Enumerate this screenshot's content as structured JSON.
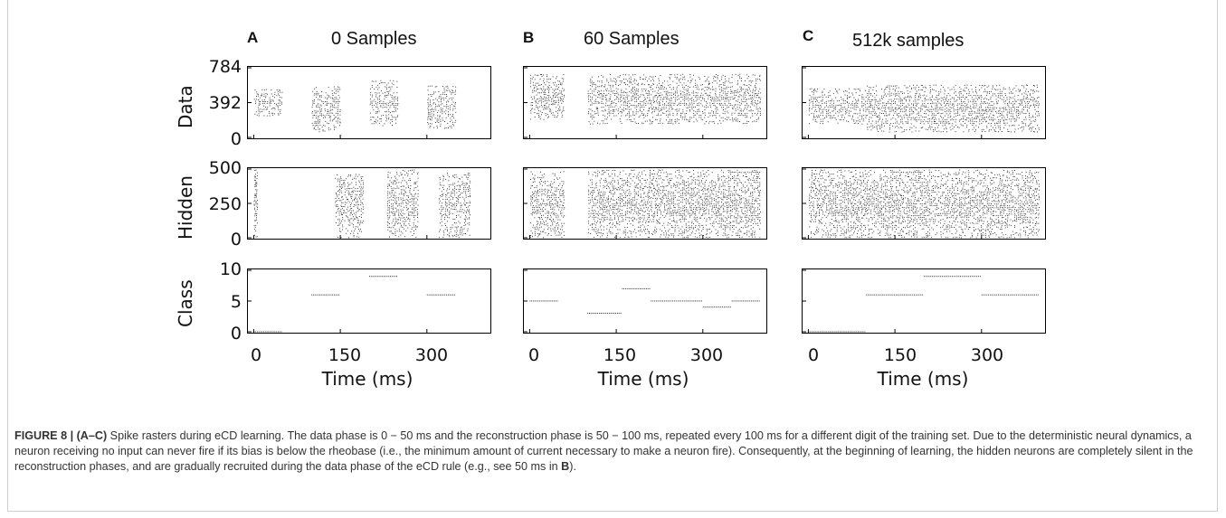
{
  "panels": [
    {
      "letter": "A",
      "title": "0 Samples"
    },
    {
      "letter": "B",
      "title": "60 Samples"
    },
    {
      "letter": "C",
      "title": "512k samples"
    }
  ],
  "rows": [
    {
      "ylabel": "Data",
      "yticks": [
        "784",
        "392",
        "0"
      ]
    },
    {
      "ylabel": "Hidden",
      "yticks": [
        "500",
        "250",
        "0"
      ]
    },
    {
      "ylabel": "Class",
      "yticks": [
        "10",
        "5",
        "0"
      ]
    }
  ],
  "xticks": [
    "0",
    "150",
    "300"
  ],
  "xlabel": "Time (ms)",
  "caption": {
    "label": "FIGURE 8 | (A–C)",
    "text_1": " Spike rasters during eCD learning. The data phase is 0 − 50 ms and the reconstruction phase is 50 − 100 ms, repeated every 100 ms for a different digit of the training set. Due to the deterministic neural dynamics, a neuron receiving no input can never fire if its bias is below the rheobase (i.e., the minimum amount of current necessary to make a neuron fire). Consequently, at the beginning of learning, the hidden neurons are completely silent in the reconstruction phases, and are gradually recruited during the data phase of the eCD rule (e.g., see 50 ms in ",
    "bold_ref": "B",
    "text_2": ")."
  },
  "chart_data": [
    {
      "type": "scatter",
      "panel": "A",
      "title": "0 Samples",
      "xlabel": "Time (ms)",
      "xlim": [
        -10,
        410
      ],
      "subplots": [
        {
          "ylabel": "Data",
          "ylim": [
            0,
            784
          ],
          "yticks": [
            0,
            392,
            784
          ],
          "blocks": [
            {
              "t0": 0,
              "t1": 50,
              "n0": 240,
              "n1": 550
            },
            {
              "t0": 100,
              "t1": 150,
              "n0": 60,
              "n1": 580
            },
            {
              "t0": 200,
              "t1": 250,
              "n0": 130,
              "n1": 650
            },
            {
              "t0": 300,
              "t1": 350,
              "n0": 100,
              "n1": 590
            }
          ]
        },
        {
          "ylabel": "Hidden",
          "ylim": [
            0,
            500
          ],
          "yticks": [
            0,
            250,
            500
          ],
          "blocks": [
            {
              "t0": 0,
              "t1": 6,
              "n0": 0,
              "n1": 500
            },
            {
              "t0": 140,
              "t1": 190,
              "n0": 0,
              "n1": 470
            },
            {
              "t0": 230,
              "t1": 285,
              "n0": 0,
              "n1": 500
            },
            {
              "t0": 320,
              "t1": 375,
              "n0": 0,
              "n1": 480
            }
          ]
        },
        {
          "ylabel": "Class",
          "ylim": [
            0,
            10
          ],
          "yticks": [
            0,
            5,
            10
          ],
          "segments": [
            {
              "t0": 0,
              "t1": 50,
              "class": 0
            },
            {
              "t0": 100,
              "t1": 150,
              "class": 6
            },
            {
              "t0": 200,
              "t1": 250,
              "class": 9
            },
            {
              "t0": 300,
              "t1": 350,
              "class": 6
            }
          ]
        }
      ]
    },
    {
      "type": "scatter",
      "panel": "B",
      "title": "60 Samples",
      "xlabel": "Time (ms)",
      "xlim": [
        -10,
        410
      ],
      "subplots": [
        {
          "ylabel": "Data",
          "ylim": [
            0,
            784
          ],
          "yticks": [
            0,
            392,
            784
          ],
          "blocks": [
            {
              "t0": 0,
              "t1": 60,
              "n0": 200,
              "n1": 720
            },
            {
              "t0": 100,
              "t1": 400,
              "n0": 150,
              "n1": 720
            }
          ]
        },
        {
          "ylabel": "Hidden",
          "ylim": [
            0,
            500
          ],
          "yticks": [
            0,
            250,
            500
          ],
          "blocks": [
            {
              "t0": 0,
              "t1": 60,
              "n0": 0,
              "n1": 490
            },
            {
              "t0": 100,
              "t1": 400,
              "n0": 0,
              "n1": 500
            }
          ]
        },
        {
          "ylabel": "Class",
          "ylim": [
            0,
            10
          ],
          "yticks": [
            0,
            5,
            10
          ],
          "segments": [
            {
              "t0": 0,
              "t1": 50,
              "class": 5
            },
            {
              "t0": 100,
              "t1": 160,
              "class": 3
            },
            {
              "t0": 160,
              "t1": 210,
              "class": 7
            },
            {
              "t0": 210,
              "t1": 270,
              "class": 5
            },
            {
              "t0": 270,
              "t1": 300,
              "class": 5
            },
            {
              "t0": 300,
              "t1": 350,
              "class": 4
            },
            {
              "t0": 350,
              "t1": 400,
              "class": 5
            }
          ]
        }
      ]
    },
    {
      "type": "scatter",
      "panel": "C",
      "title": "512k samples",
      "xlabel": "Time (ms)",
      "xlim": [
        -10,
        410
      ],
      "subplots": [
        {
          "ylabel": "Data",
          "ylim": [
            0,
            784
          ],
          "yticks": [
            0,
            392,
            784
          ],
          "blocks": [
            {
              "t0": 0,
              "t1": 100,
              "n0": 150,
              "n1": 560
            },
            {
              "t0": 100,
              "t1": 400,
              "n0": 60,
              "n1": 600
            }
          ]
        },
        {
          "ylabel": "Hidden",
          "ylim": [
            0,
            500
          ],
          "yticks": [
            0,
            250,
            500
          ],
          "blocks": [
            {
              "t0": 0,
              "t1": 400,
              "n0": 0,
              "n1": 500
            }
          ]
        },
        {
          "ylabel": "Class",
          "ylim": [
            0,
            10
          ],
          "yticks": [
            0,
            5,
            10
          ],
          "segments": [
            {
              "t0": 0,
              "t1": 100,
              "class": 0
            },
            {
              "t0": 100,
              "t1": 200,
              "class": 6
            },
            {
              "t0": 200,
              "t1": 300,
              "class": 9
            },
            {
              "t0": 300,
              "t1": 400,
              "class": 6
            }
          ]
        }
      ]
    }
  ]
}
